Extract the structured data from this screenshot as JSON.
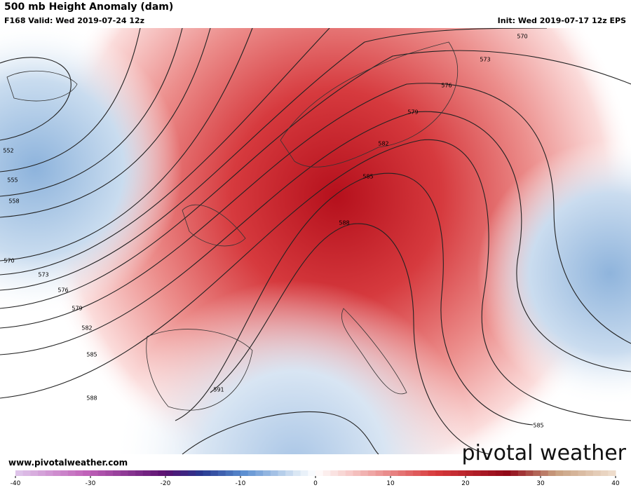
{
  "header": {
    "title": "500 mb Height Anomaly (dam)",
    "valid": "F168 Valid: Wed 2019-07-24 12z",
    "init": "Init: Wed 2019-07-17 12z EPS"
  },
  "contour_labels": [
    570,
    573,
    576,
    579,
    582,
    585,
    588,
    552,
    555,
    558,
    570,
    573,
    576,
    579,
    582,
    585,
    588,
    591,
    585
  ],
  "colorbar": {
    "lim": [
      -40,
      40
    ],
    "ticks": [
      -40,
      -30,
      -20,
      -10,
      0,
      10,
      20,
      30,
      40
    ]
  },
  "footer": {
    "website": "www.pivotalweather.com",
    "logo": "pivotal weather"
  }
}
